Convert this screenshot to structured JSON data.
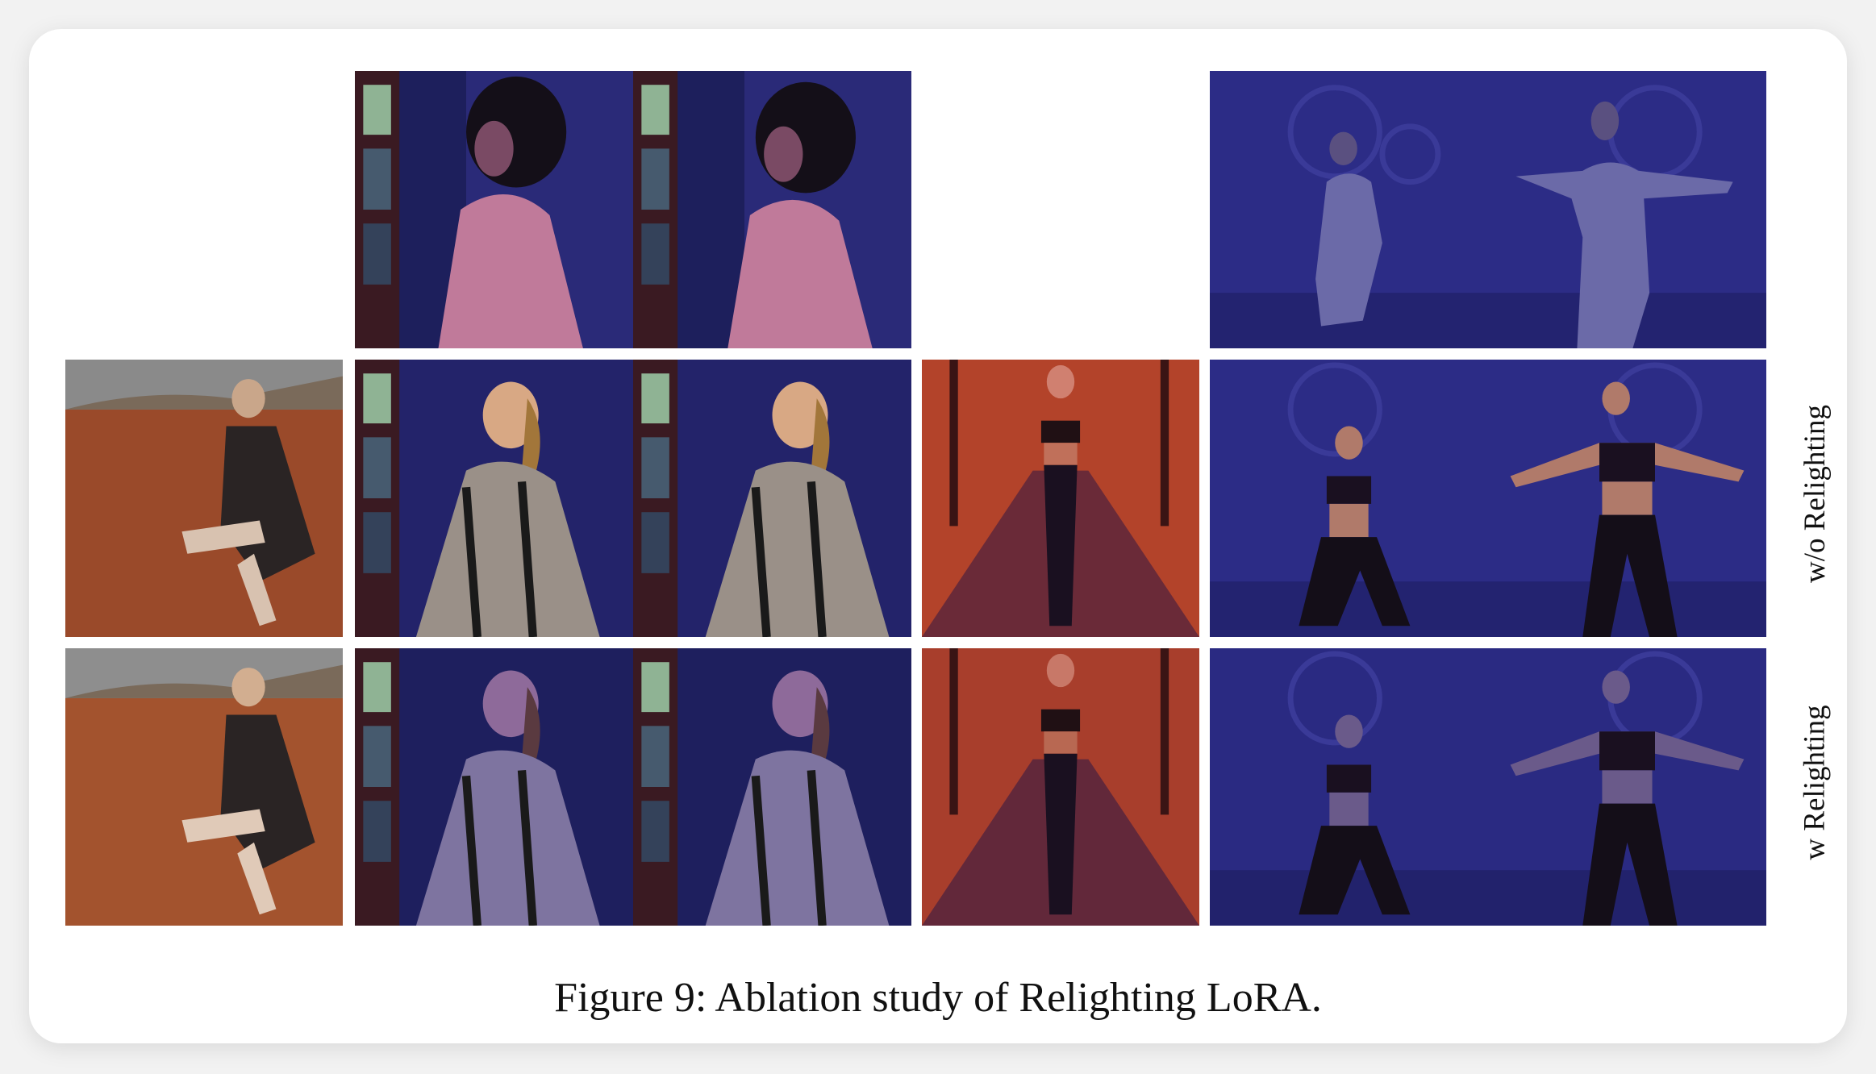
{
  "figure": {
    "caption": "Figure 9: Ablation study of Relighting LoRA.",
    "row_labels": [
      "w/o Relighting",
      "w Relighting"
    ]
  },
  "tile_icons": {
    "desert": "woman-on-desert-rock-photo",
    "bedroom": "woman-in-bedroom-photo",
    "corridor": "woman-in-gym-corridor-photo",
    "wall": "dancer-before-graffiti-wall-photo"
  },
  "palette": {
    "desert_ground": "#9a4a2a",
    "bedroom_blue": "#23236a",
    "gym_orange": "#b3432a",
    "wall_indigo": "#2c2c86"
  }
}
